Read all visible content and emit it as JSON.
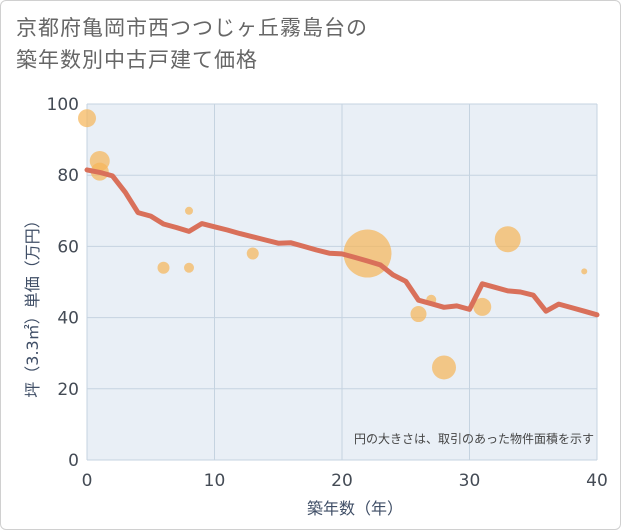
{
  "title": {
    "line1": "京都府亀岡市西つつじヶ丘霧島台の",
    "line2": "築年数別中古戸建て価格"
  },
  "colors": {
    "line": "#d9705a",
    "bubble": "#f5b55a",
    "grid": "#c5d3e0",
    "plot_bg": "#e9eff6"
  },
  "chart_data": {
    "type": "scatter",
    "title": "京都府亀岡市西つつじヶ丘霧島台の築年数別中古戸建て価格",
    "xlabel": "築年数（年）",
    "ylabel": "坪（3.3㎡）単価（万円）",
    "xlim": [
      0,
      40
    ],
    "ylim": [
      0,
      100
    ],
    "xticks": [
      0,
      10,
      20,
      30,
      40
    ],
    "yticks": [
      0,
      20,
      40,
      60,
      80,
      100
    ],
    "grid": true,
    "note": "円の大きさは、取引のあった物件面積を示す",
    "bubbles": [
      {
        "x": 0,
        "y": 96,
        "size": 9
      },
      {
        "x": 1,
        "y": 84,
        "size": 10
      },
      {
        "x": 1,
        "y": 81,
        "size": 9
      },
      {
        "x": 6,
        "y": 54,
        "size": 6
      },
      {
        "x": 8,
        "y": 70,
        "size": 4
      },
      {
        "x": 8,
        "y": 54,
        "size": 5
      },
      {
        "x": 13,
        "y": 58,
        "size": 6
      },
      {
        "x": 22,
        "y": 58,
        "size": 24
      },
      {
        "x": 26,
        "y": 41,
        "size": 8
      },
      {
        "x": 27,
        "y": 45,
        "size": 5
      },
      {
        "x": 28,
        "y": 26,
        "size": 12
      },
      {
        "x": 31,
        "y": 43,
        "size": 9
      },
      {
        "x": 33,
        "y": 62,
        "size": 13
      },
      {
        "x": 39,
        "y": 53,
        "size": 3
      }
    ],
    "line": {
      "x": [
        0,
        1,
        2,
        3,
        4,
        5,
        6,
        7,
        8,
        9,
        10,
        11,
        12,
        13,
        14,
        15,
        16,
        17,
        18,
        19,
        20,
        21,
        22,
        23,
        24,
        25,
        26,
        27,
        28,
        29,
        30,
        31,
        32,
        33,
        34,
        35,
        36,
        37,
        38,
        39,
        40
      ],
      "y": [
        81.5,
        80.8,
        79.8,
        75.2,
        69.5,
        68.5,
        66.3,
        65.3,
        64.2,
        66.4,
        65.5,
        64.6,
        63.6,
        62.7,
        61.8,
        60.9,
        61.0,
        60.0,
        59.0,
        58.1,
        57.9,
        56.9,
        55.9,
        54.8,
        52.0,
        50.2,
        44.9,
        43.9,
        42.9,
        43.3,
        42.3,
        49.5,
        48.5,
        47.5,
        47.2,
        46.3,
        41.8,
        43.8,
        42.8,
        41.8,
        40.8
      ]
    }
  }
}
